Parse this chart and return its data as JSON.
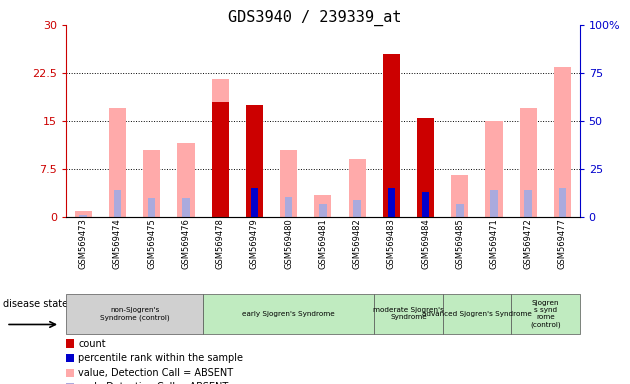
{
  "title": "GDS3940 / 239339_at",
  "samples": [
    "GSM569473",
    "GSM569474",
    "GSM569475",
    "GSM569476",
    "GSM569478",
    "GSM569479",
    "GSM569480",
    "GSM569481",
    "GSM569482",
    "GSM569483",
    "GSM569484",
    "GSM569485",
    "GSM569471",
    "GSM569472",
    "GSM569477"
  ],
  "count": [
    0,
    0,
    0,
    0,
    18.0,
    17.5,
    0,
    0,
    0,
    25.5,
    15.5,
    0,
    0,
    0,
    0
  ],
  "percentile_rank": [
    0,
    0,
    0,
    0,
    0,
    15.0,
    0,
    0,
    0,
    15.0,
    13.0,
    0,
    0,
    0,
    0
  ],
  "value_absent": [
    1.0,
    17.0,
    10.5,
    11.5,
    21.5,
    0,
    10.5,
    3.5,
    9.0,
    0,
    0,
    6.5,
    15.0,
    17.0,
    23.5
  ],
  "rank_absent": [
    1.0,
    14.0,
    10.0,
    10.0,
    0,
    0,
    10.5,
    6.5,
    9.0,
    0,
    0,
    7.0,
    14.0,
    14.0,
    15.0
  ],
  "ylim_left": [
    0,
    30
  ],
  "ylim_right": [
    0,
    100
  ],
  "yticks_left": [
    0,
    7.5,
    15,
    22.5,
    30
  ],
  "ytick_labels_left": [
    "0",
    "7.5",
    "15",
    "22.5",
    "30"
  ],
  "ytick_labels_right": [
    "0",
    "25",
    "50",
    "75",
    "100%"
  ],
  "disease_groups": [
    {
      "label": "non-Sjogren's\nSyndrome (control)",
      "start": 0,
      "end": 4,
      "color": "#d0d0d0"
    },
    {
      "label": "early Sjogren's Syndrome",
      "start": 4,
      "end": 9,
      "color": "#c0ebc0"
    },
    {
      "label": "moderate Sjogren's\nSyndrome",
      "start": 9,
      "end": 11,
      "color": "#c0ebc0"
    },
    {
      "label": "advanced Sjogren's Syndrome",
      "start": 11,
      "end": 13,
      "color": "#c0ebc0"
    },
    {
      "label": "Sjogren\ns synd\nrome\n(control)",
      "start": 13,
      "end": 15,
      "color": "#c0ebc0"
    }
  ],
  "legend_items": [
    {
      "label": "count",
      "color": "#cc0000"
    },
    {
      "label": "percentile rank within the sample",
      "color": "#0000cc"
    },
    {
      "label": "value, Detection Call = ABSENT",
      "color": "#ffaaaa"
    },
    {
      "label": "rank, Detection Call = ABSENT",
      "color": "#aaaadd"
    }
  ],
  "left_axis_color": "#cc0000",
  "right_axis_color": "#0000cc",
  "bar_color_count": "#cc0000",
  "bar_color_pct": "#0000cc",
  "bar_color_value": "#ffaaaa",
  "bar_color_rank": "#aaaadd"
}
